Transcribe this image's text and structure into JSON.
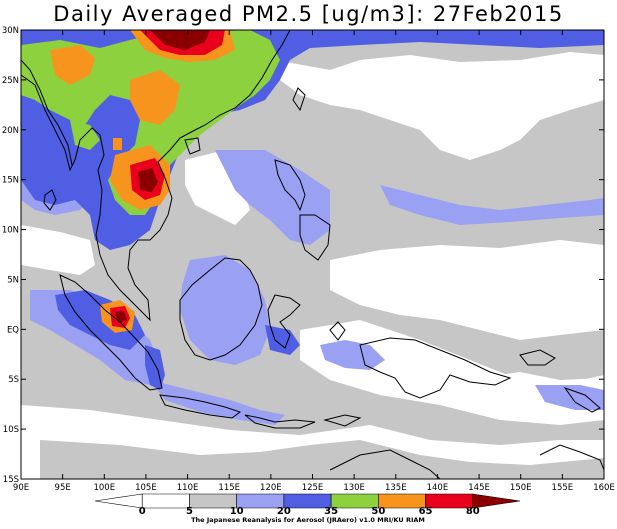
{
  "title": "Daily Averaged PM2.5 [ug/m3]: 27Feb2015",
  "map": {
    "lon_range": [
      90,
      160
    ],
    "lat_range": [
      -15,
      30
    ],
    "y_ticks": [
      "30N",
      "25N",
      "20N",
      "15N",
      "10N",
      "5N",
      "EQ",
      "5S",
      "10S",
      "15S"
    ],
    "x_ticks": [
      "90E",
      "95E",
      "100E",
      "105E",
      "110E",
      "115E",
      "120E",
      "125E",
      "130E",
      "135E",
      "140E",
      "145E",
      "150E",
      "155E",
      "160E"
    ]
  },
  "colorbar": {
    "levels": [
      "0",
      "5",
      "10",
      "20",
      "35",
      "50",
      "65",
      "80"
    ],
    "colors": [
      "#ffffff",
      "#ffffff",
      "#c6c6c6",
      "#9aa0f2",
      "#4f5ee2",
      "#8dd13f",
      "#f7941d",
      "#e8001c",
      "#8a0000"
    ]
  },
  "credit": "The Japanese Reanalysis for Aerosol (JRAero) v1.0 MRI/KU RIAM"
}
